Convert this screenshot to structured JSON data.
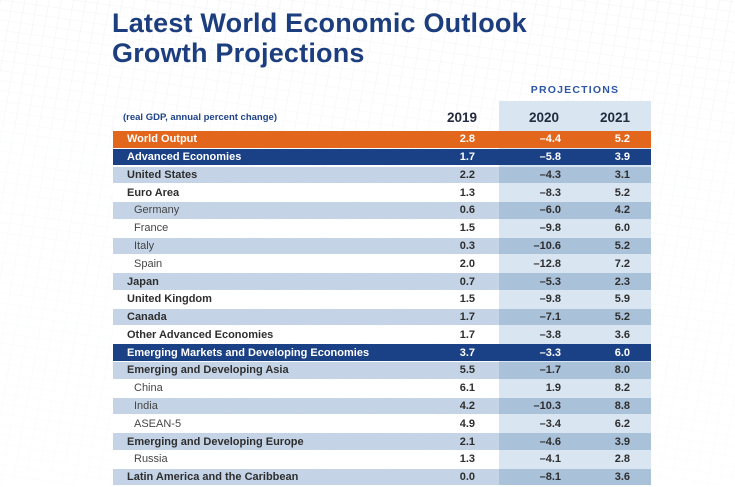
{
  "header": {
    "title_line1": "Latest World Economic Outlook",
    "title_line2": "Growth Projections",
    "subtitle": "(real GDP, annual percent change)",
    "projections_label": "PROJECTIONS"
  },
  "colors": {
    "title_navy": "#1c3d7e",
    "projections_blue": "#2d56a5",
    "world_output_orange": "#e2661c",
    "group_row_navy": "#1a4085",
    "zebra_blue": "#c4d4e6",
    "zebra_blue_projection_tint": "#aac1da",
    "white_row_projection_tint": "#d9e5f1",
    "projections_panel": "#d9e5f1"
  },
  "chart_data": {
    "type": "table",
    "title": "Latest World Economic Outlook Growth Projections",
    "subtitle": "(real GDP, annual percent change)",
    "column_group_label": "PROJECTIONS",
    "columns": [
      "2019",
      "2020",
      "2021"
    ],
    "rows": [
      {
        "label": "World Output",
        "tone": "orange",
        "indent": 0,
        "values": [
          "2.8",
          "–4.4",
          "5.2"
        ]
      },
      {
        "label": "Advanced Economies",
        "tone": "navy",
        "indent": 0,
        "values": [
          "1.7",
          "–5.8",
          "3.9"
        ]
      },
      {
        "label": "United States",
        "tone": "blue",
        "indent": 0,
        "values": [
          "2.2",
          "–4.3",
          "3.1"
        ]
      },
      {
        "label": "Euro Area",
        "tone": "white",
        "indent": 0,
        "values": [
          "1.3",
          "–8.3",
          "5.2"
        ]
      },
      {
        "label": "Germany",
        "tone": "blue",
        "indent": 1,
        "values": [
          "0.6",
          "–6.0",
          "4.2"
        ]
      },
      {
        "label": "France",
        "tone": "white",
        "indent": 1,
        "values": [
          "1.5",
          "–9.8",
          "6.0"
        ]
      },
      {
        "label": "Italy",
        "tone": "blue",
        "indent": 1,
        "values": [
          "0.3",
          "–10.6",
          "5.2"
        ]
      },
      {
        "label": "Spain",
        "tone": "white",
        "indent": 1,
        "values": [
          "2.0",
          "–12.8",
          "7.2"
        ]
      },
      {
        "label": "Japan",
        "tone": "blue",
        "indent": 0,
        "values": [
          "0.7",
          "–5.3",
          "2.3"
        ]
      },
      {
        "label": "United Kingdom",
        "tone": "white",
        "indent": 0,
        "values": [
          "1.5",
          "–9.8",
          "5.9"
        ]
      },
      {
        "label": "Canada",
        "tone": "blue",
        "indent": 0,
        "values": [
          "1.7",
          "–7.1",
          "5.2"
        ]
      },
      {
        "label": "Other Advanced Economies",
        "tone": "white",
        "indent": 0,
        "values": [
          "1.7",
          "–3.8",
          "3.6"
        ]
      },
      {
        "label": "Emerging Markets and Developing Economies",
        "tone": "navy",
        "indent": 0,
        "values": [
          "3.7",
          "–3.3",
          "6.0"
        ]
      },
      {
        "label": "Emerging and Developing Asia",
        "tone": "blue",
        "indent": 0,
        "values": [
          "5.5",
          "–1.7",
          "8.0"
        ]
      },
      {
        "label": "China",
        "tone": "white",
        "indent": 1,
        "values": [
          "6.1",
          "1.9",
          "8.2"
        ]
      },
      {
        "label": "India",
        "tone": "blue",
        "indent": 1,
        "values": [
          "4.2",
          "–10.3",
          "8.8"
        ]
      },
      {
        "label": "ASEAN-5",
        "tone": "white",
        "indent": 1,
        "values": [
          "4.9",
          "–3.4",
          "6.2"
        ]
      },
      {
        "label": "Emerging and Developing Europe",
        "tone": "blue",
        "indent": 0,
        "values": [
          "2.1",
          "–4.6",
          "3.9"
        ]
      },
      {
        "label": "Russia",
        "tone": "white",
        "indent": 1,
        "values": [
          "1.3",
          "–4.1",
          "2.8"
        ]
      },
      {
        "label": "Latin America and the Caribbean",
        "tone": "blue",
        "indent": 0,
        "values": [
          "0.0",
          "–8.1",
          "3.6"
        ]
      }
    ]
  }
}
